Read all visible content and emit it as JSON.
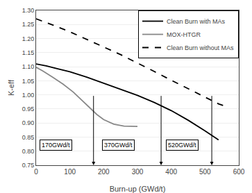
{
  "chart_data": {
    "type": "line",
    "xlabel": "Burn-up (GWd/t)",
    "ylabel": "K-eff",
    "xlim": [
      0,
      600
    ],
    "ylim": [
      0.75,
      1.3
    ],
    "xticks": [
      0,
      100,
      200,
      300,
      400,
      500,
      600
    ],
    "yticks": [
      0.75,
      {
        "value": 0.8,
        "label": "0.80"
      },
      0.85,
      {
        "value": 0.9,
        "label": "0.90"
      },
      0.95,
      {
        "value": 1,
        "label": "1.00"
      },
      1.05,
      {
        "value": 1.1,
        "label": "1.10"
      },
      1.15,
      {
        "value": 1.2,
        "label": "1.20"
      },
      1.25,
      {
        "value": 1.3,
        "label": "1.30"
      }
    ],
    "grid": "y",
    "legend": "upper right",
    "series": [
      {
        "name": "Clean Burn with MAs",
        "color": "#000000",
        "line_style": "solid",
        "x": [
          0,
          30,
          60,
          100,
          150,
          200,
          250,
          300,
          350,
          400,
          450,
          500,
          520,
          540
        ],
        "values": [
          1.11,
          1.103,
          1.094,
          1.082,
          1.063,
          1.042,
          1.02,
          0.998,
          0.973,
          0.944,
          0.91,
          0.872,
          0.857,
          0.84
        ]
      },
      {
        "name": "MOX-HTGR",
        "color": "#888888",
        "line_style": "solid",
        "x": [
          0,
          20,
          50,
          80,
          110,
          140,
          160,
          180,
          200,
          230,
          260,
          280,
          300
        ],
        "values": [
          1.098,
          1.085,
          1.062,
          1.038,
          1.01,
          0.975,
          0.952,
          0.93,
          0.912,
          0.896,
          0.889,
          0.888,
          0.888
        ]
      },
      {
        "name": "Clean Burn without MAs",
        "color": "#000000",
        "line_style": "dashed",
        "x": [
          0,
          50,
          100,
          150,
          200,
          250,
          300,
          350,
          400,
          450,
          500,
          540,
          560
        ],
        "values": [
          1.27,
          1.248,
          1.224,
          1.198,
          1.17,
          1.143,
          1.114,
          1.083,
          1.052,
          1.022,
          0.99,
          0.968,
          0.96
        ]
      }
    ],
    "vlines": [
      {
        "x": 170,
        "y_top": 1.0,
        "y_bottom": 0.75
      },
      {
        "x": 370,
        "y_top": 1.0,
        "y_bottom": 0.75
      },
      {
        "x": 520,
        "y_top": 1.0,
        "y_bottom": 0.75
      }
    ],
    "annotations": [
      {
        "text": "170GWd/t",
        "x": 10,
        "y": 0.822
      },
      {
        "text": "370GWd/t",
        "x": 195,
        "y": 0.822
      },
      {
        "text": "520GWd/t",
        "x": 385,
        "y": 0.822
      }
    ]
  }
}
